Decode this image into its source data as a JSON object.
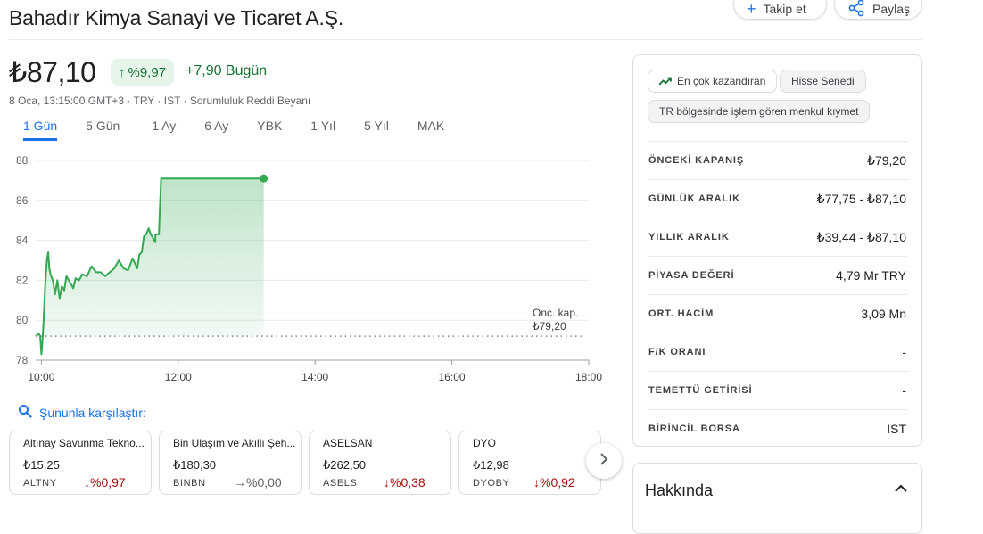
{
  "header": {
    "company": "Bahadır Kimya Sanayi ve Ticaret A.Ş.",
    "follow_label": "Takip et",
    "share_label": "Paylaş"
  },
  "quote": {
    "price": "₺87,10",
    "change_pct": "%9,97",
    "change_today": "+7,90 Bugün",
    "meta": "8 Oca, 13:15:00 GMT+3 · TRY · IST · Sorumluluk Reddi Beyanı"
  },
  "tabs": [
    "1 Gün",
    "5 Gün",
    "1 Ay",
    "6 Ay",
    "YBK",
    "1 Yıl",
    "5 Yıl",
    "MAK"
  ],
  "active_tab": "1 Gün",
  "colors": {
    "up": "#137333",
    "down": "#a50e0e",
    "accent": "#1a73e8",
    "line": "#34a853"
  },
  "chart_data": {
    "type": "area",
    "x_tick_labels": [
      "10:00",
      "12:00",
      "14:00",
      "16:00",
      "18:00"
    ],
    "y_tick_labels": [
      "78",
      "80",
      "82",
      "84",
      "86",
      "88"
    ],
    "ylim": [
      78,
      88
    ],
    "xlim": [
      "09:55",
      "18:00"
    ],
    "prev_close_label": "Önc. kap.",
    "prev_close_value_label": "₺79,20",
    "prev_close": 79.2,
    "grid": true,
    "series": [
      {
        "x": [
          "09:55",
          "09:57",
          "09:58",
          "09:59",
          "10:00",
          "10:01",
          "10:02",
          "10:03",
          "10:04",
          "10:05",
          "10:06",
          "10:07",
          "10:08",
          "10:10",
          "10:12",
          "10:14",
          "10:16",
          "10:18",
          "10:20",
          "10:22",
          "10:25",
          "10:28",
          "10:30",
          "10:33",
          "10:36",
          "10:40",
          "10:44",
          "10:48",
          "10:52",
          "10:56",
          "11:00",
          "11:04",
          "11:08",
          "11:12",
          "11:16",
          "11:20",
          "11:24",
          "11:26",
          "11:28",
          "11:30",
          "11:32",
          "11:34",
          "11:36",
          "11:38",
          "11:40",
          "11:40",
          "11:43",
          "11:45",
          "13:15"
        ],
        "y": [
          79.2,
          79.3,
          79.3,
          79.2,
          78.3,
          79.0,
          80.0,
          81.3,
          82.4,
          83.1,
          83.4,
          82.6,
          82.3,
          82.0,
          81.3,
          82.0,
          81.1,
          81.7,
          81.5,
          82.2,
          81.9,
          81.6,
          82.1,
          82.0,
          82.3,
          82.2,
          82.7,
          82.4,
          82.4,
          82.2,
          82.4,
          82.6,
          83.0,
          82.6,
          82.5,
          83.1,
          82.6,
          83.3,
          83.4,
          84.2,
          84.3,
          84.6,
          84.3,
          84.1,
          83.9,
          84.3,
          84.3,
          87.1,
          87.1
        ]
      }
    ]
  },
  "compare": {
    "title": "Şununla karşılaştır:",
    "cards": [
      {
        "name": "Altınay Savunma Tekno...",
        "price": "₺15,25",
        "ticker": "ALTNY",
        "change": "%0,97",
        "arrow": "↓",
        "dir": "down"
      },
      {
        "name": "Bin Ulaşım ve Akıllı Şeh...",
        "price": "₺180,30",
        "ticker": "BINBN",
        "change": "%0,00",
        "arrow": "→",
        "dir": "flat"
      },
      {
        "name": "ASELSAN",
        "price": "₺262,50",
        "ticker": "ASELS",
        "change": "%0,38",
        "arrow": "↓",
        "dir": "down"
      },
      {
        "name": "DYO",
        "price": "₺12,98",
        "ticker": "DYOBY",
        "change": "%0,92",
        "arrow": "↓",
        "dir": "down"
      }
    ]
  },
  "panel": {
    "chips": [
      "En çok kazandıran",
      "Hisse Senedi",
      "TR bölgesinde işlem gören menkul kıymet"
    ],
    "stats": [
      {
        "label": "ÖNCEKİ KAPANIŞ",
        "value": "₺79,20"
      },
      {
        "label": "GÜNLÜK ARALIK",
        "value": "₺77,75 - ₺87,10"
      },
      {
        "label": "YILLIK ARALIK",
        "value": "₺39,44 - ₺87,10"
      },
      {
        "label": "PİYASA DEĞERİ",
        "value": "4,79 Mr TRY"
      },
      {
        "label": "ORT. HACİM",
        "value": "3,09 Mn"
      },
      {
        "label": "F/K ORANI",
        "value": "-"
      },
      {
        "label": "TEMETTÜ GETİRİSİ",
        "value": "-"
      },
      {
        "label": "BİRİNCİL BORSA",
        "value": "IST"
      }
    ]
  },
  "about": {
    "title": "Hakkında"
  }
}
